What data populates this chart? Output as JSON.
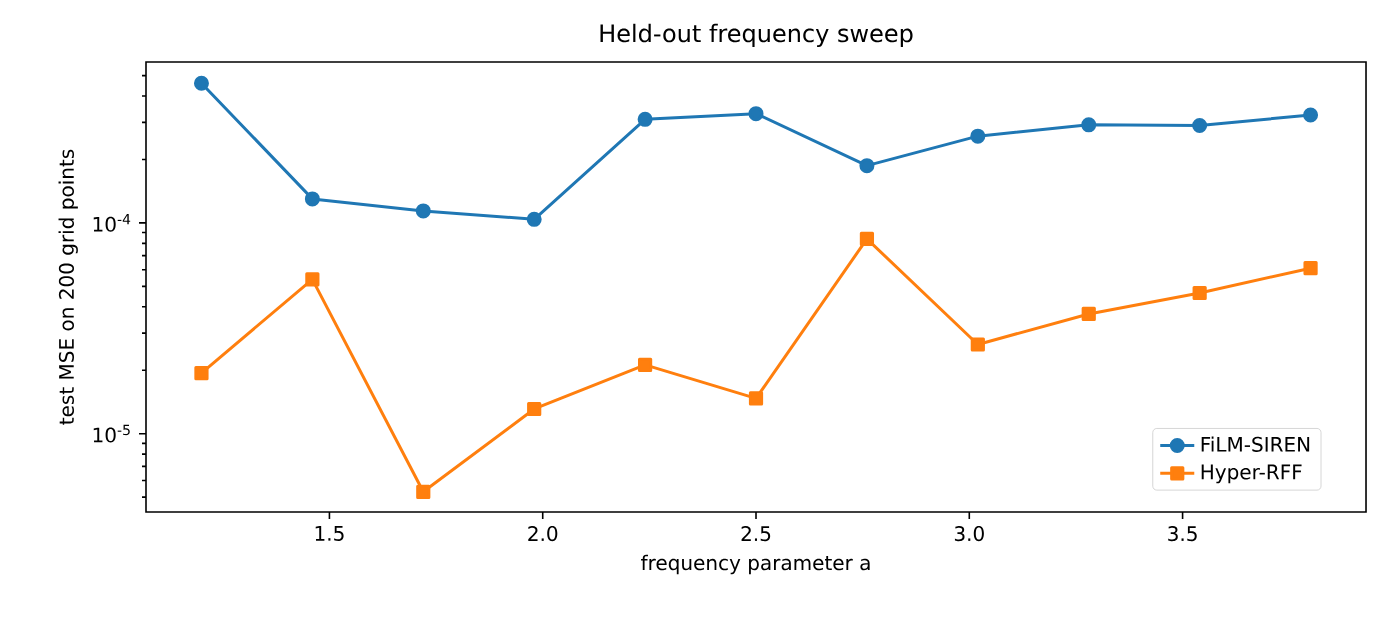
{
  "chart_data": {
    "type": "line",
    "title": "Held-out frequency sweep",
    "xlabel": "frequency parameter a",
    "ylabel": "test MSE on 200 grid points",
    "x": [
      1.2,
      1.46,
      1.72,
      1.98,
      2.24,
      2.5,
      2.76,
      3.02,
      3.28,
      3.54,
      3.8
    ],
    "series": [
      {
        "name": "FiLM-SIREN",
        "color": "#1f77b4",
        "marker": "circle",
        "values": [
          0.00046,
          0.00013,
          0.000114,
          0.000104,
          0.00031,
          0.00033,
          0.000187,
          0.000258,
          0.000292,
          0.00029,
          0.000325
        ]
      },
      {
        "name": "Hyper-RFF",
        "color": "#ff7f0e",
        "marker": "square",
        "values": [
          1.94e-05,
          5.4e-05,
          5.3e-06,
          1.31e-05,
          2.12e-05,
          1.47e-05,
          8.4e-05,
          2.65e-05,
          3.7e-05,
          4.65e-05,
          6.1e-05
        ]
      }
    ],
    "log": "y",
    "line_style": "solid",
    "legend": "bottom right",
    "xlim": [
      1.07,
      3.93
    ],
    "ylim": [
      4.25e-06,
      0.00058
    ],
    "xticks": [
      1.5,
      {
        "value": 2.0,
        "label": "2.0"
      },
      2.5,
      {
        "value": 3.0,
        "label": "3.0"
      },
      3.5
    ],
    "yticks": [
      {
        "value": 5e-06,
        "label": null
      },
      {
        "value": 6e-06,
        "label": null
      },
      {
        "value": 7e-06,
        "label": null
      },
      {
        "value": 8e-06,
        "label": null
      },
      {
        "value": 9e-06,
        "label": null
      },
      {
        "value": 1e-05,
        "label": "10$^{-5}$"
      },
      {
        "value": 2e-05,
        "label": null
      },
      {
        "value": 3e-05,
        "label": null
      },
      {
        "value": 4e-05,
        "label": null
      },
      {
        "value": 5e-05,
        "label": null
      },
      {
        "value": 6e-05,
        "label": null
      },
      {
        "value": 7e-05,
        "label": null
      },
      {
        "value": 8e-05,
        "label": null
      },
      {
        "value": 9e-05,
        "label": null
      },
      {
        "value": 0.0001,
        "label": "10$^{-4}$"
      },
      {
        "value": 0.0002,
        "label": null
      },
      {
        "value": 0.0003,
        "label": null
      },
      {
        "value": 0.0004,
        "label": null
      },
      {
        "value": 0.0005,
        "label": null
      }
    ]
  }
}
